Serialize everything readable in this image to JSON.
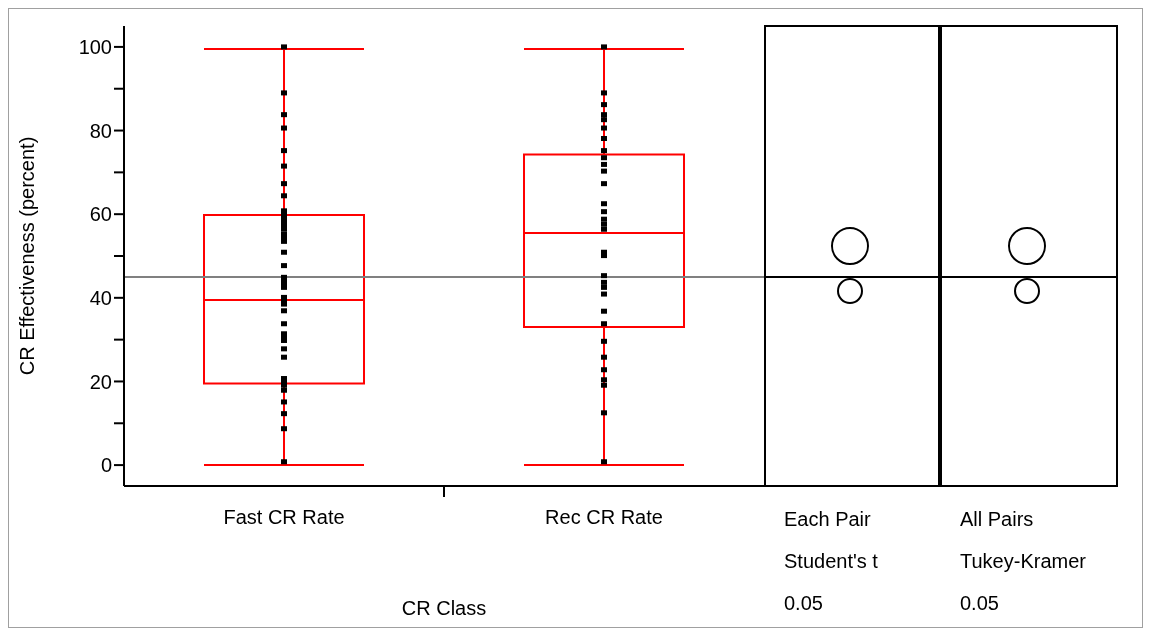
{
  "chart_data": [
    {
      "type": "box",
      "xlabel": "CR Class",
      "ylabel": "CR Effectiveness (percent)",
      "categories": [
        "Fast CR Rate",
        "Rec CR Rate"
      ],
      "ylim": [
        -5,
        105
      ],
      "yticks": [
        0,
        {
          "value": 10,
          "label": null
        },
        20,
        {
          "value": 30,
          "label": null
        },
        40,
        {
          "value": 50,
          "label": null
        },
        60,
        {
          "value": 70,
          "label": null
        },
        80,
        {
          "value": 90,
          "label": null
        },
        100
      ],
      "grid": false,
      "series": [
        {
          "type": "box",
          "color": "#ff0000",
          "boxes": [
            {
              "low": 0,
              "q1": 19.5,
              "median": 39.5,
              "q3": 59.8,
              "high": 99.5
            },
            {
              "low": 0,
              "q1": 33,
              "median": 55.5,
              "q3": 74.3,
              "high": 99.5
            }
          ]
        },
        {
          "type": "scatter",
          "color": "#000000",
          "marker": "square",
          "x": [
            "Fast CR Rate",
            "Fast CR Rate",
            "Fast CR Rate",
            "Fast CR Rate",
            "Fast CR Rate",
            "Fast CR Rate",
            "Fast CR Rate",
            "Fast CR Rate",
            "Fast CR Rate",
            "Fast CR Rate",
            "Fast CR Rate",
            "Fast CR Rate",
            "Fast CR Rate",
            "Fast CR Rate",
            "Fast CR Rate",
            "Fast CR Rate",
            "Fast CR Rate",
            "Fast CR Rate",
            "Fast CR Rate",
            "Fast CR Rate",
            "Fast CR Rate",
            "Fast CR Rate",
            "Fast CR Rate",
            "Fast CR Rate",
            "Fast CR Rate",
            "Fast CR Rate",
            "Fast CR Rate",
            "Fast CR Rate",
            "Fast CR Rate",
            "Fast CR Rate",
            "Fast CR Rate",
            "Fast CR Rate",
            "Fast CR Rate",
            "Fast CR Rate",
            "Fast CR Rate",
            "Fast CR Rate",
            "Fast CR Rate",
            "Fast CR Rate",
            "Fast CR Rate",
            "Fast CR Rate",
            "Fast CR Rate"
          ],
          "values": [
            100,
            89,
            83.8,
            80.6,
            75.2,
            71.5,
            67.3,
            64.4,
            60.8,
            60,
            59.2,
            58.4,
            57.4,
            56.4,
            55.2,
            54.4,
            53.5,
            50.9,
            47.7,
            44.9,
            44.1,
            43.3,
            42.5,
            40.1,
            39.3,
            38.5,
            36.9,
            33.8,
            31.4,
            30.6,
            29.8,
            27.8,
            25.8,
            20.7,
            19.9,
            19.1,
            17.9,
            15.1,
            12.3,
            8.7,
            0.8
          ]
        },
        {
          "type": "scatter",
          "color": "#000000",
          "marker": "square",
          "x": [
            "Rec CR Rate",
            "Rec CR Rate",
            "Rec CR Rate",
            "Rec CR Rate",
            "Rec CR Rate",
            "Rec CR Rate",
            "Rec CR Rate",
            "Rec CR Rate",
            "Rec CR Rate",
            "Rec CR Rate",
            "Rec CR Rate",
            "Rec CR Rate",
            "Rec CR Rate",
            "Rec CR Rate",
            "Rec CR Rate",
            "Rec CR Rate",
            "Rec CR Rate",
            "Rec CR Rate",
            "Rec CR Rate",
            "Rec CR Rate",
            "Rec CR Rate",
            "Rec CR Rate",
            "Rec CR Rate",
            "Rec CR Rate",
            "Rec CR Rate",
            "Rec CR Rate",
            "Rec CR Rate",
            "Rec CR Rate",
            "Rec CR Rate",
            "Rec CR Rate",
            "Rec CR Rate",
            "Rec CR Rate"
          ],
          "values": [
            100,
            89,
            86.2,
            83.8,
            82.6,
            80.6,
            78.1,
            75.2,
            73.5,
            71.9,
            70.3,
            67.3,
            62.5,
            60.6,
            58.8,
            57.6,
            56.4,
            50.9,
            50.1,
            45.3,
            43.7,
            42.5,
            40.9,
            36.8,
            33.8,
            29.6,
            25.8,
            22.8,
            20.4,
            19.1,
            12.5,
            0.8
          ]
        }
      ],
      "ref_lines": [
        {
          "axis": "y",
          "value": 45,
          "color": "#808080"
        }
      ]
    },
    {
      "type": "other",
      "annotations": [
        "Each Pair",
        "Student's t",
        "0.05"
      ]
    },
    {
      "type": "other",
      "annotations": [
        "All Pairs",
        "Tukey-Kramer",
        "0.05"
      ]
    }
  ]
}
